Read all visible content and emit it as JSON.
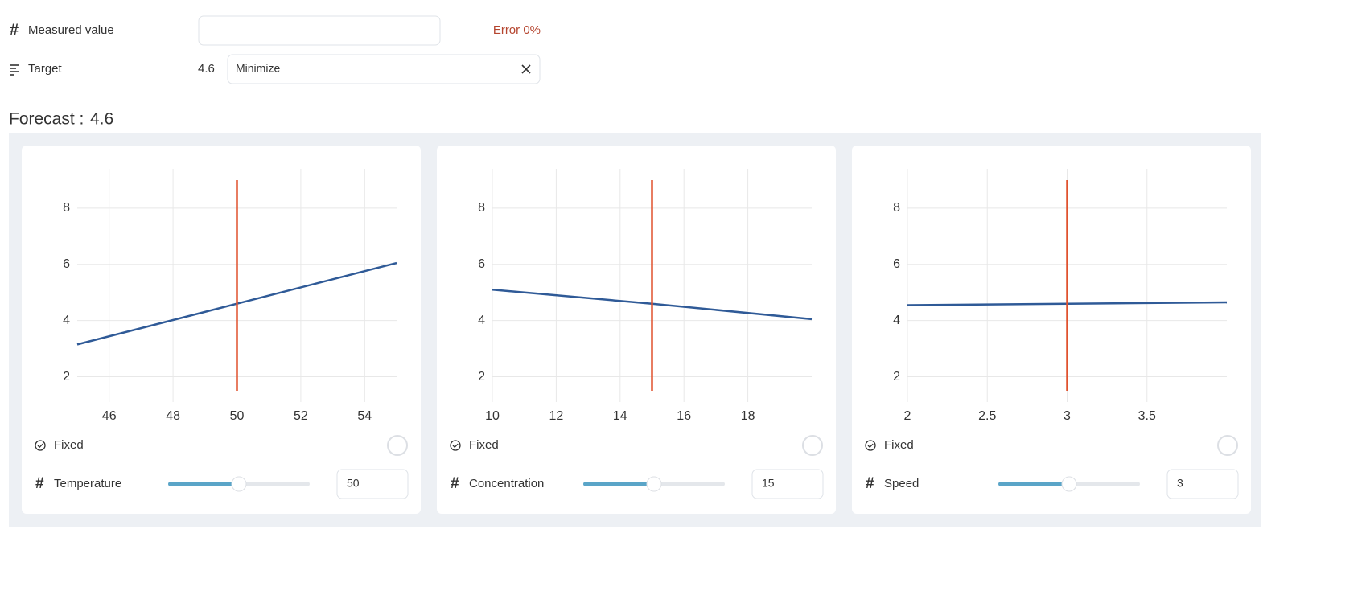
{
  "measured": {
    "label": "Measured value",
    "error": "Error 0%"
  },
  "target": {
    "label": "Target",
    "value": 4.6,
    "mode": "Minimize"
  },
  "forecast": {
    "label": "Forecast :",
    "value": 4.6
  },
  "chart_data": [
    {
      "type": "line",
      "x": [
        45,
        50,
        55
      ],
      "values": [
        3.15,
        4.6,
        6.05
      ],
      "color": "#2f5a97",
      "xlim": [
        45,
        55
      ],
      "xticks": [
        46,
        48,
        50,
        52,
        54
      ],
      "ylim": [
        1.1,
        9.4
      ],
      "yticks": [
        2,
        4,
        6,
        8
      ],
      "grid": true,
      "marker_color": "#e0522e",
      "marker_ylim": [
        1.5,
        9
      ],
      "fixed_label": "Fixed",
      "variable": "Temperature",
      "value": 50
    },
    {
      "type": "line",
      "x": [
        10,
        15,
        20
      ],
      "values": [
        5.1,
        4.6,
        4.05
      ],
      "color": "#2f5a97",
      "xlim": [
        10,
        20
      ],
      "xticks": [
        10,
        12,
        14,
        16,
        18
      ],
      "ylim": [
        1.1,
        9.4
      ],
      "yticks": [
        2,
        4,
        6,
        8
      ],
      "grid": true,
      "marker_color": "#e0522e",
      "marker_ylim": [
        1.5,
        9
      ],
      "fixed_label": "Fixed",
      "variable": "Concentration",
      "value": 15
    },
    {
      "type": "line",
      "x": [
        2,
        3,
        4
      ],
      "values": [
        4.55,
        4.6,
        4.65
      ],
      "color": "#2f5a97",
      "xlim": [
        2,
        4
      ],
      "xticks": [
        2,
        2.5,
        3,
        3.5
      ],
      "ylim": [
        1.1,
        9.4
      ],
      "yticks": [
        2,
        4,
        6,
        8
      ],
      "grid": true,
      "marker_color": "#e0522e",
      "marker_ylim": [
        1.5,
        9
      ],
      "fixed_label": "Fixed",
      "variable": "Speed",
      "value": 3
    }
  ]
}
